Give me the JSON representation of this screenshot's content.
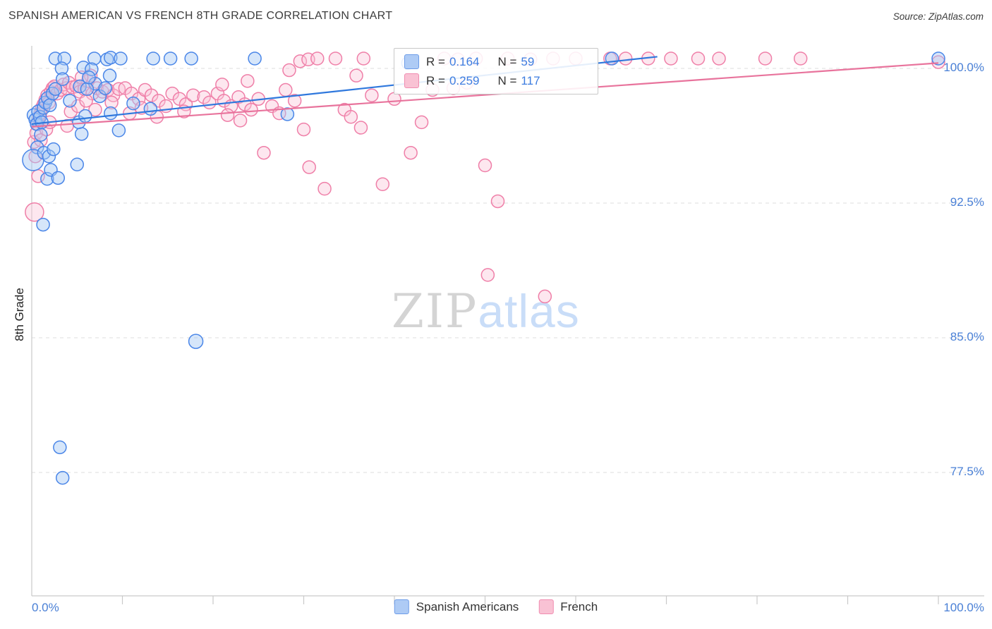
{
  "header": {
    "title": "SPANISH AMERICAN VS FRENCH 8TH GRADE CORRELATION CHART",
    "source": "Source: ZipAtlas.com"
  },
  "watermark": {
    "part1": "ZIP",
    "part2": "atlas"
  },
  "axes": {
    "y_label": "8th Grade",
    "y_ticks": [
      {
        "value": 100.0,
        "label": "100.0%"
      },
      {
        "value": 92.5,
        "label": "92.5%"
      },
      {
        "value": 85.0,
        "label": "85.0%"
      },
      {
        "value": 77.5,
        "label": "77.5%"
      }
    ],
    "x_tick_labels": {
      "left": "0.0%",
      "right": "100.0%"
    }
  },
  "legend_box": {
    "rows": [
      {
        "r_prefix": "R = ",
        "r_value": "0.164",
        "n_prefix": "N = ",
        "n_value": "59"
      },
      {
        "r_prefix": "R = ",
        "r_value": "0.259",
        "n_prefix": "N = ",
        "n_value": "117"
      }
    ]
  },
  "bottom_legend": [
    {
      "label": "Spanish Americans"
    },
    {
      "label": "French"
    }
  ],
  "colors": {
    "axis_label_blue": "#4a80d6",
    "grid": "#dcdcdc",
    "blue_stroke": "#4a86e8",
    "blue_fill": "rgba(164,199,245,0.45)",
    "pink_stroke": "#ef7fa8",
    "pink_fill": "rgba(249,195,214,0.40)"
  },
  "chart_data": {
    "type": "scatter",
    "title": "SPANISH AMERICAN VS FRENCH 8TH GRADE CORRELATION CHART",
    "xlabel": "",
    "ylabel": "8th Grade",
    "x_range": [
      0,
      100
    ],
    "y_range": [
      70.5,
      101.2
    ],
    "y_ticks": [
      100,
      92.5,
      85,
      77.5
    ],
    "grid": "dashed-horizontal",
    "legend_position": "top-center",
    "series": [
      {
        "name": "Spanish Americans",
        "R": 0.164,
        "N": 59,
        "stroke": "#4a86e8",
        "fill": "rgba(164,199,245,0.45)",
        "points": [
          [
            2.6,
            100.55
          ],
          [
            3.6,
            100.55
          ],
          [
            6.9,
            100.55
          ],
          [
            8.3,
            100.5
          ],
          [
            8.7,
            100.6
          ],
          [
            9.8,
            100.55
          ],
          [
            13.4,
            100.55
          ],
          [
            15.3,
            100.55
          ],
          [
            17.6,
            100.55
          ],
          [
            24.6,
            100.55
          ],
          [
            64.0,
            100.55
          ],
          [
            100.0,
            100.55
          ],
          [
            3.3,
            100.0
          ],
          [
            5.7,
            100.05
          ],
          [
            6.6,
            99.95
          ],
          [
            8.6,
            99.6
          ],
          [
            3.4,
            99.4
          ],
          [
            7.0,
            99.15
          ],
          [
            5.3,
            99.0
          ],
          [
            6.1,
            98.85
          ],
          [
            0.2,
            97.4
          ],
          [
            0.4,
            97.15
          ],
          [
            0.55,
            96.9
          ],
          [
            0.7,
            97.6
          ],
          [
            0.9,
            97.3
          ],
          [
            1.1,
            97.0
          ],
          [
            1.3,
            97.8
          ],
          [
            1.5,
            98.1
          ],
          [
            1.75,
            98.35
          ],
          [
            2.0,
            97.95
          ],
          [
            2.3,
            98.6
          ],
          [
            2.6,
            98.85
          ],
          [
            1.0,
            96.3
          ],
          [
            0.6,
            95.6
          ],
          [
            0.15,
            94.9,
            15
          ],
          [
            1.35,
            95.3
          ],
          [
            1.7,
            93.85
          ],
          [
            2.1,
            94.35
          ],
          [
            2.9,
            93.9
          ],
          [
            1.9,
            95.1
          ],
          [
            2.4,
            95.5
          ],
          [
            5.0,
            94.65
          ],
          [
            5.5,
            96.35
          ],
          [
            5.2,
            97.0
          ],
          [
            5.9,
            97.35
          ],
          [
            7.5,
            98.45
          ],
          [
            8.1,
            98.9
          ],
          [
            11.2,
            98.05
          ],
          [
            8.7,
            97.5
          ],
          [
            13.1,
            97.75
          ],
          [
            9.6,
            96.55
          ],
          [
            6.3,
            99.5
          ],
          [
            4.2,
            98.2
          ],
          [
            28.2,
            97.45
          ],
          [
            41.5,
            100.3
          ],
          [
            1.25,
            91.3
          ],
          [
            18.1,
            84.8,
            10
          ],
          [
            3.1,
            78.9
          ],
          [
            3.4,
            77.2
          ]
        ]
      },
      {
        "name": "French",
        "R": 0.259,
        "N": 117,
        "stroke": "#ef7fa8",
        "fill": "rgba(249,195,214,0.40)",
        "points": [
          [
            0.25,
            95.9
          ],
          [
            0.4,
            95.1
          ],
          [
            0.5,
            96.4
          ],
          [
            0.65,
            96.9
          ],
          [
            0.8,
            97.2
          ],
          [
            0.95,
            97.5
          ],
          [
            1.1,
            97.8
          ],
          [
            1.3,
            98.0
          ],
          [
            1.5,
            98.25
          ],
          [
            1.7,
            98.5
          ],
          [
            1.9,
            98.1
          ],
          [
            2.1,
            98.7
          ],
          [
            2.3,
            98.9
          ],
          [
            2.5,
            99.0
          ],
          [
            2.8,
            98.6
          ],
          [
            0.3,
            92.0,
            13
          ],
          [
            0.7,
            94.0
          ],
          [
            1.0,
            96.0
          ],
          [
            1.6,
            96.6
          ],
          [
            2.0,
            97.0
          ],
          [
            3.2,
            98.8
          ],
          [
            3.5,
            99.1
          ],
          [
            3.8,
            98.9
          ],
          [
            4.1,
            99.2
          ],
          [
            4.5,
            98.95
          ],
          [
            4.9,
            99.0
          ],
          [
            5.3,
            98.7
          ],
          [
            5.8,
            98.85
          ],
          [
            6.2,
            99.3
          ],
          [
            6.7,
            98.6
          ],
          [
            7.2,
            98.9
          ],
          [
            7.8,
            98.7
          ],
          [
            8.4,
            98.8
          ],
          [
            9.0,
            98.5
          ],
          [
            9.6,
            98.85
          ],
          [
            4.3,
            97.6
          ],
          [
            5.1,
            97.9
          ],
          [
            6.0,
            98.2
          ],
          [
            7.0,
            97.7
          ],
          [
            8.8,
            98.1
          ],
          [
            3.9,
            96.8
          ],
          [
            6.5,
            99.6
          ],
          [
            5.5,
            99.5
          ],
          [
            10.3,
            98.9
          ],
          [
            11.0,
            98.6
          ],
          [
            11.8,
            98.3
          ],
          [
            12.5,
            98.8
          ],
          [
            13.2,
            98.5
          ],
          [
            14.0,
            98.2
          ],
          [
            14.8,
            97.9
          ],
          [
            15.5,
            98.6
          ],
          [
            16.3,
            98.3
          ],
          [
            17.0,
            98.0
          ],
          [
            17.8,
            98.5
          ],
          [
            10.8,
            97.5
          ],
          [
            12.1,
            97.8
          ],
          [
            13.8,
            97.3
          ],
          [
            16.8,
            97.6
          ],
          [
            19.0,
            98.4
          ],
          [
            19.6,
            98.1
          ],
          [
            20.5,
            98.6
          ],
          [
            21.2,
            98.2
          ],
          [
            22.0,
            97.9
          ],
          [
            22.8,
            98.4
          ],
          [
            23.5,
            98.0
          ],
          [
            24.2,
            97.7
          ],
          [
            25.0,
            98.3
          ],
          [
            21.6,
            97.4
          ],
          [
            23.0,
            97.1
          ],
          [
            26.5,
            97.9
          ],
          [
            27.3,
            97.5
          ],
          [
            28.0,
            98.8
          ],
          [
            29.0,
            98.2
          ],
          [
            21.0,
            99.1
          ],
          [
            23.8,
            99.3
          ],
          [
            25.6,
            95.3
          ],
          [
            28.4,
            99.9
          ],
          [
            29.6,
            100.4
          ],
          [
            30.5,
            100.5
          ],
          [
            31.5,
            100.55
          ],
          [
            33.5,
            100.55
          ],
          [
            36.6,
            100.55
          ],
          [
            30.6,
            94.5
          ],
          [
            32.3,
            93.3
          ],
          [
            34.5,
            97.7
          ],
          [
            35.2,
            97.3
          ],
          [
            36.3,
            96.7
          ],
          [
            37.5,
            98.5
          ],
          [
            38.7,
            93.55
          ],
          [
            40.0,
            98.3
          ],
          [
            41.8,
            95.3
          ],
          [
            43.0,
            97.0
          ],
          [
            44.2,
            98.8
          ],
          [
            30.0,
            96.6
          ],
          [
            35.8,
            99.6
          ],
          [
            45.5,
            100.55
          ],
          [
            47.0,
            100.5
          ],
          [
            50.0,
            94.6
          ],
          [
            51.4,
            92.6
          ],
          [
            50.3,
            88.5
          ],
          [
            56.6,
            87.3
          ],
          [
            46.5,
            98.9
          ],
          [
            48.0,
            99.2
          ],
          [
            49.0,
            100.55
          ],
          [
            52.5,
            100.55
          ],
          [
            55.0,
            100.5
          ],
          [
            57.5,
            100.55
          ],
          [
            60.0,
            100.55
          ],
          [
            63.8,
            100.55
          ],
          [
            65.5,
            100.55
          ],
          [
            68.0,
            100.55
          ],
          [
            70.5,
            100.55
          ],
          [
            73.5,
            100.55
          ],
          [
            75.8,
            100.55
          ],
          [
            80.9,
            100.55
          ],
          [
            84.8,
            100.55
          ],
          [
            100.0,
            100.35
          ]
        ]
      }
    ],
    "trend_lines": [
      {
        "series": "Spanish Americans",
        "color": "#2f78dd",
        "from": [
          0,
          96.9
        ],
        "to": [
          69,
          100.65
        ]
      },
      {
        "series": "French",
        "color": "#e8739c",
        "from": [
          0,
          96.75
        ],
        "to": [
          100,
          100.3
        ]
      }
    ]
  }
}
